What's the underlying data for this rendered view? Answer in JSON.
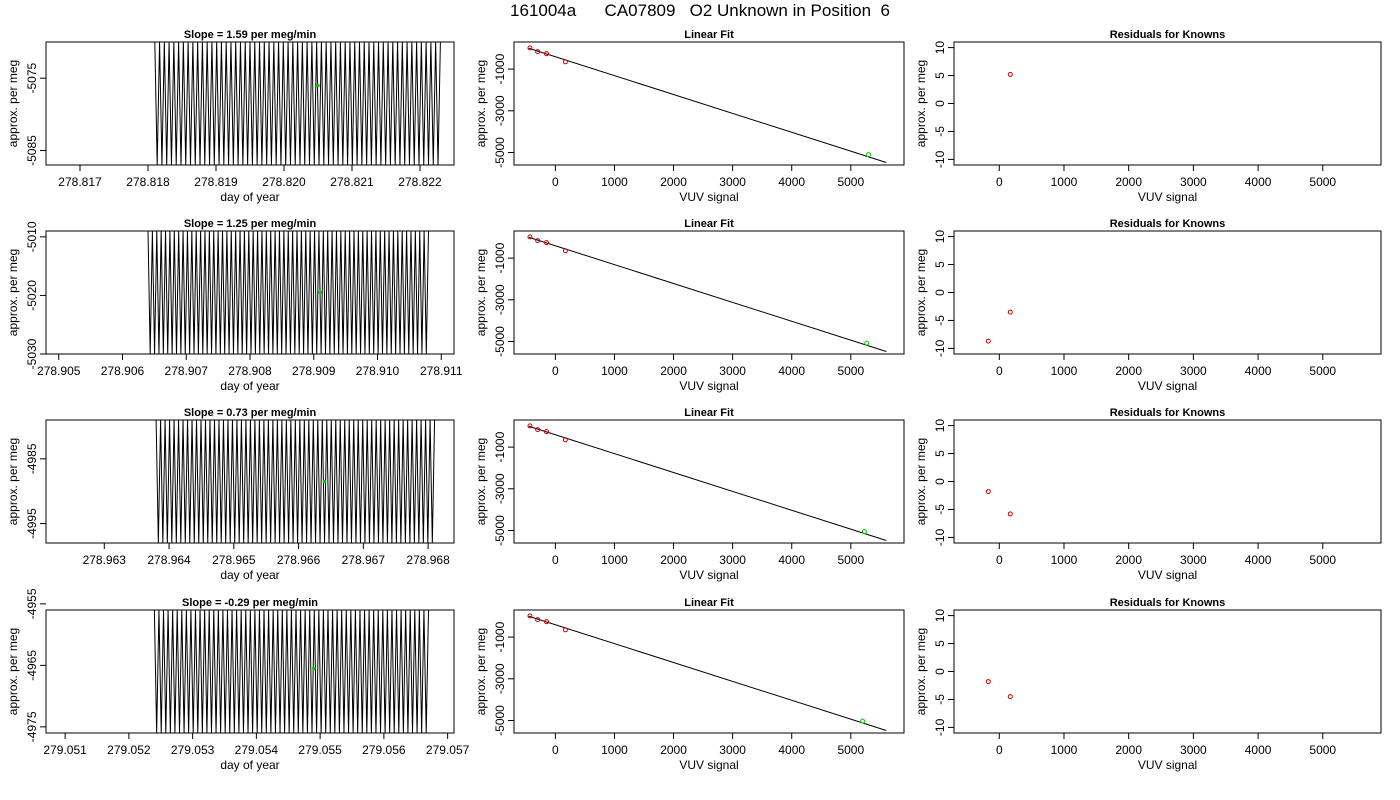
{
  "page": {
    "title": "161004a      CA07809   O2 Unknown in Position  6"
  },
  "chart_data": [
    {
      "type": "line",
      "title": "Slope =  1.59  per meg/min",
      "xlabel": "day of year",
      "ylabel": "approx. per meg",
      "xlim": [
        278.8165,
        278.8225
      ],
      "ylim": [
        -5087,
        -5070
      ],
      "xticks": [
        "278.817",
        "278.818",
        "278.819",
        "278.820",
        "278.821",
        "278.822"
      ],
      "yticks": [
        "-5085",
        "-5075"
      ],
      "trace": {
        "x_start": 278.8181,
        "x_end": 278.8223,
        "cycles": 60,
        "y_high": -5070,
        "y_low": -5087
      },
      "marker": {
        "x": 278.8205,
        "y": -5076,
        "color": "#00cc00"
      }
    },
    {
      "type": "scatter",
      "title": "Linear Fit",
      "xlabel": "VUV signal",
      "ylabel": "approx. per meg",
      "xlim": [
        -700,
        5900
      ],
      "ylim": [
        -5600,
        300
      ],
      "xticks": [
        "0",
        "1000",
        "2000",
        "3000",
        "4000",
        "5000"
      ],
      "yticks": [
        "-1000",
        "-3000",
        "-5000"
      ],
      "line": {
        "x": [
          -450,
          5600
        ],
        "y": [
          0,
          -5480
        ]
      },
      "known_points": {
        "x": [
          -430,
          -300,
          -150,
          170
        ],
        "y": [
          20,
          -160,
          -260,
          -650
        ]
      },
      "unknown_point": {
        "x": 5300,
        "y": -5100,
        "color": "#00cc00"
      }
    },
    {
      "type": "scatter",
      "title": "Residuals for Knowns",
      "xlabel": "VUV signal",
      "ylabel": "approx. per meg",
      "xlim": [
        -700,
        5900
      ],
      "ylim": [
        -11,
        11
      ],
      "xticks": [
        "0",
        "1000",
        "2000",
        "3000",
        "4000",
        "5000"
      ],
      "yticks": [
        "-10",
        "-5",
        "0",
        "5",
        "10"
      ],
      "points": {
        "x": [
          170
        ],
        "y": [
          5.2
        ],
        "color": "#cc0000"
      }
    },
    {
      "type": "line",
      "title": "Slope =  1.25  per meg/min",
      "xlabel": "day of year",
      "ylabel": "approx. per meg",
      "xlim": [
        278.9048,
        278.9112
      ],
      "ylim": [
        -5030,
        -5009
      ],
      "xticks": [
        "278.905",
        "278.906",
        "278.907",
        "278.908",
        "278.909",
        "278.910",
        "278.911"
      ],
      "yticks": [
        "-5030",
        "-5020",
        "-5010"
      ],
      "trace": {
        "x_start": 278.9064,
        "x_end": 278.9108,
        "cycles": 64,
        "y_high": -5009,
        "y_low": -5030
      },
      "marker": {
        "x": 278.9091,
        "y": -5019.5,
        "color": "#00cc00"
      }
    },
    {
      "type": "scatter",
      "title": "Linear Fit",
      "xlabel": "VUV signal",
      "ylabel": "approx. per meg",
      "xlim": [
        -700,
        5900
      ],
      "ylim": [
        -5600,
        300
      ],
      "xticks": [
        "0",
        "1000",
        "2000",
        "3000",
        "4000",
        "5000"
      ],
      "yticks": [
        "-1000",
        "-3000",
        "-5000"
      ],
      "line": {
        "x": [
          -450,
          5600
        ],
        "y": [
          0,
          -5480
        ]
      },
      "known_points": {
        "x": [
          -430,
          -300,
          -150,
          170
        ],
        "y": [
          20,
          -160,
          -260,
          -650
        ]
      },
      "unknown_point": {
        "x": 5270,
        "y": -5080,
        "color": "#00cc00"
      }
    },
    {
      "type": "scatter",
      "title": "Residuals for Knowns",
      "xlabel": "VUV signal",
      "ylabel": "approx. per meg",
      "xlim": [
        -700,
        5900
      ],
      "ylim": [
        -11,
        11
      ],
      "xticks": [
        "0",
        "1000",
        "2000",
        "3000",
        "4000",
        "5000"
      ],
      "yticks": [
        "-10",
        "-5",
        "0",
        "5",
        "10"
      ],
      "points": {
        "x": [
          -170,
          170
        ],
        "y": [
          -8.7,
          -3.5
        ],
        "color": "#cc0000"
      }
    },
    {
      "type": "line",
      "title": "Slope =  0.73  per meg/min",
      "xlabel": "day of year",
      "ylabel": "approx. per meg",
      "xlim": [
        278.9621,
        278.9684
      ],
      "ylim": [
        -4998,
        -4979
      ],
      "xticks": [
        "278.963",
        "278.964",
        "278.965",
        "278.966",
        "278.967",
        "278.968"
      ],
      "yticks": [
        "-4995",
        "-4985"
      ],
      "trace": {
        "x_start": 278.9638,
        "x_end": 278.9681,
        "cycles": 62,
        "y_high": -4979,
        "y_low": -4998
      },
      "marker": {
        "x": 278.9664,
        "y": -4988.5,
        "color": "#00cc00"
      }
    },
    {
      "type": "scatter",
      "title": "Linear Fit",
      "xlabel": "VUV signal",
      "ylabel": "approx. per meg",
      "xlim": [
        -700,
        5900
      ],
      "ylim": [
        -5600,
        300
      ],
      "xticks": [
        "0",
        "1000",
        "2000",
        "3000",
        "4000",
        "5000"
      ],
      "yticks": [
        "-1000",
        "-3000",
        "-5000"
      ],
      "line": {
        "x": [
          -450,
          5600
        ],
        "y": [
          0,
          -5480
        ]
      },
      "known_points": {
        "x": [
          -430,
          -300,
          -150,
          170
        ],
        "y": [
          20,
          -160,
          -260,
          -650
        ]
      },
      "unknown_point": {
        "x": 5230,
        "y": -5050,
        "color": "#00cc00"
      }
    },
    {
      "type": "scatter",
      "title": "Residuals for Knowns",
      "xlabel": "VUV signal",
      "ylabel": "approx. per meg",
      "xlim": [
        -700,
        5900
      ],
      "ylim": [
        -11,
        11
      ],
      "xticks": [
        "0",
        "1000",
        "2000",
        "3000",
        "4000",
        "5000"
      ],
      "yticks": [
        "-10",
        "-5",
        "0",
        "5",
        "10"
      ],
      "points": {
        "x": [
          -170,
          170
        ],
        "y": [
          -1.8,
          -5.8
        ],
        "color": "#cc0000"
      }
    },
    {
      "type": "line",
      "title": "Slope =  -0.29  per meg/min",
      "xlabel": "day of year",
      "ylabel": "approx. per meg",
      "xlim": [
        279.0507,
        279.0571
      ],
      "ylim": [
        -4976,
        -4956
      ],
      "xticks": [
        "279.051",
        "279.052",
        "279.053",
        "279.054",
        "279.055",
        "279.056",
        "279.057"
      ],
      "yticks": [
        "-4975",
        "-4965",
        "-4955"
      ],
      "trace": {
        "x_start": 279.0524,
        "x_end": 279.0567,
        "cycles": 60,
        "y_high": -4956,
        "y_low": -4976
      },
      "marker": {
        "x": 279.0549,
        "y": -4965.5,
        "color": "#00cc00"
      }
    },
    {
      "type": "scatter",
      "title": "Linear Fit",
      "xlabel": "VUV signal",
      "ylabel": "approx. per meg",
      "xlim": [
        -700,
        5900
      ],
      "ylim": [
        -5600,
        300
      ],
      "xticks": [
        "0",
        "1000",
        "2000",
        "3000",
        "4000",
        "5000"
      ],
      "yticks": [
        "-1000",
        "-3000",
        "-5000"
      ],
      "line": {
        "x": [
          -450,
          5600
        ],
        "y": [
          0,
          -5480
        ]
      },
      "known_points": {
        "x": [
          -430,
          -300,
          -150,
          170
        ],
        "y": [
          20,
          -160,
          -260,
          -650
        ]
      },
      "unknown_point": {
        "x": 5200,
        "y": -5030,
        "color": "#00cc00"
      }
    },
    {
      "type": "scatter",
      "title": "Residuals for Knowns",
      "xlabel": "VUV signal",
      "ylabel": "approx. per meg",
      "xlim": [
        -700,
        5900
      ],
      "ylim": [
        -11,
        11
      ],
      "xticks": [
        "0",
        "1000",
        "2000",
        "3000",
        "4000",
        "5000"
      ],
      "yticks": [
        "-10",
        "-5",
        "0",
        "5",
        "10"
      ],
      "points": {
        "x": [
          -170,
          170
        ],
        "y": [
          -1.8,
          -4.5
        ],
        "color": "#cc0000"
      }
    }
  ]
}
